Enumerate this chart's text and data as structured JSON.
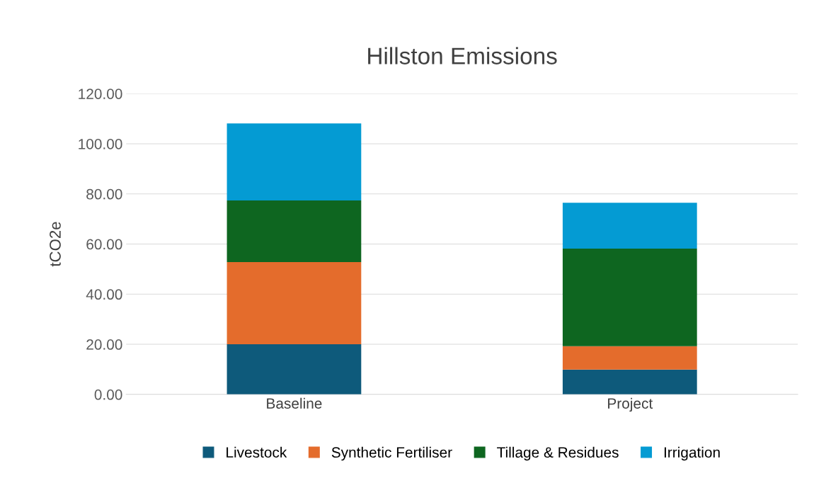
{
  "chart_data": {
    "type": "bar",
    "title": "Hillston Emissions",
    "ylabel": "tCO2e",
    "stacked": true,
    "categories": [
      "Baseline",
      "Project"
    ],
    "series": [
      {
        "name": "Livestock",
        "color": "#0e5a7b",
        "values": [
          20.0,
          9.9
        ]
      },
      {
        "name": "Synthetic Fertiliser",
        "color": "#e46c2c",
        "values": [
          32.8,
          9.3
        ]
      },
      {
        "name": "Tillage & Residues",
        "color": "#0e6620",
        "values": [
          24.6,
          39.0
        ]
      },
      {
        "name": "Irrigation",
        "color": "#049bd3",
        "values": [
          30.7,
          18.3
        ]
      }
    ],
    "ylim": [
      0,
      120
    ],
    "yticks": [
      {
        "value": 0,
        "label": "0.00"
      },
      {
        "value": 20,
        "label": "20.00"
      },
      {
        "value": 40,
        "label": "40.00"
      },
      {
        "value": 60,
        "label": "60.00"
      },
      {
        "value": 80,
        "label": "80.00"
      },
      {
        "value": 100,
        "label": "100.00"
      },
      {
        "value": 120,
        "label": "120.00"
      }
    ],
    "grid": "y",
    "legend": "bottom"
  }
}
